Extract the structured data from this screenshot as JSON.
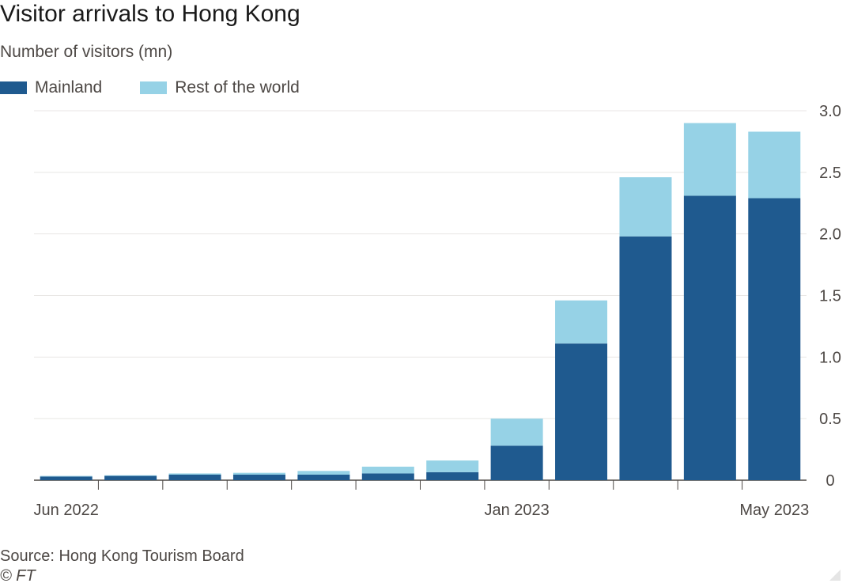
{
  "title": "Visitor arrivals to Hong Kong",
  "subtitle": "Number of visitors (mn)",
  "legend": {
    "mainland": "Mainland",
    "rest": "Rest of the world"
  },
  "source": "Source: Hong Kong Tourism Board",
  "credit": "© FT",
  "colors": {
    "mainland": "#1f5a8f",
    "rest": "#96d2e6",
    "grid": "#e8e6e4",
    "axis": "#4d4845"
  },
  "chart_data": {
    "type": "bar",
    "stacked": true,
    "categories": [
      "Jun 2022",
      "Jul 2022",
      "Aug 2022",
      "Sep 2022",
      "Oct 2022",
      "Nov 2022",
      "Dec 2022",
      "Jan 2023",
      "Feb 2023",
      "Mar 2023",
      "Apr 2023",
      "May 2023"
    ],
    "x_tick_labels": [
      {
        "index": 0,
        "label": "Jun 2022"
      },
      {
        "index": 7,
        "label": "Jan 2023"
      },
      {
        "index": 11,
        "label": "May 2023"
      }
    ],
    "series": [
      {
        "name": "Mainland",
        "values": [
          0.03,
          0.035,
          0.045,
          0.045,
          0.045,
          0.055,
          0.065,
          0.28,
          1.11,
          1.98,
          2.31,
          2.29
        ]
      },
      {
        "name": "Rest of the world",
        "values": [
          0.005,
          0.005,
          0.01,
          0.015,
          0.03,
          0.055,
          0.095,
          0.22,
          0.35,
          0.48,
          0.59,
          0.54
        ]
      }
    ],
    "y_ticks": [
      0,
      0.5,
      1.0,
      1.5,
      2.0,
      2.5,
      3.0
    ],
    "y_tick_labels": [
      "0",
      "0.5",
      "1.0",
      "1.5",
      "2.0",
      "2.5",
      "3.0"
    ],
    "ylim": [
      0,
      3.0
    ],
    "y_axis_side": "right",
    "grid": true,
    "legend_position": "top-left"
  }
}
